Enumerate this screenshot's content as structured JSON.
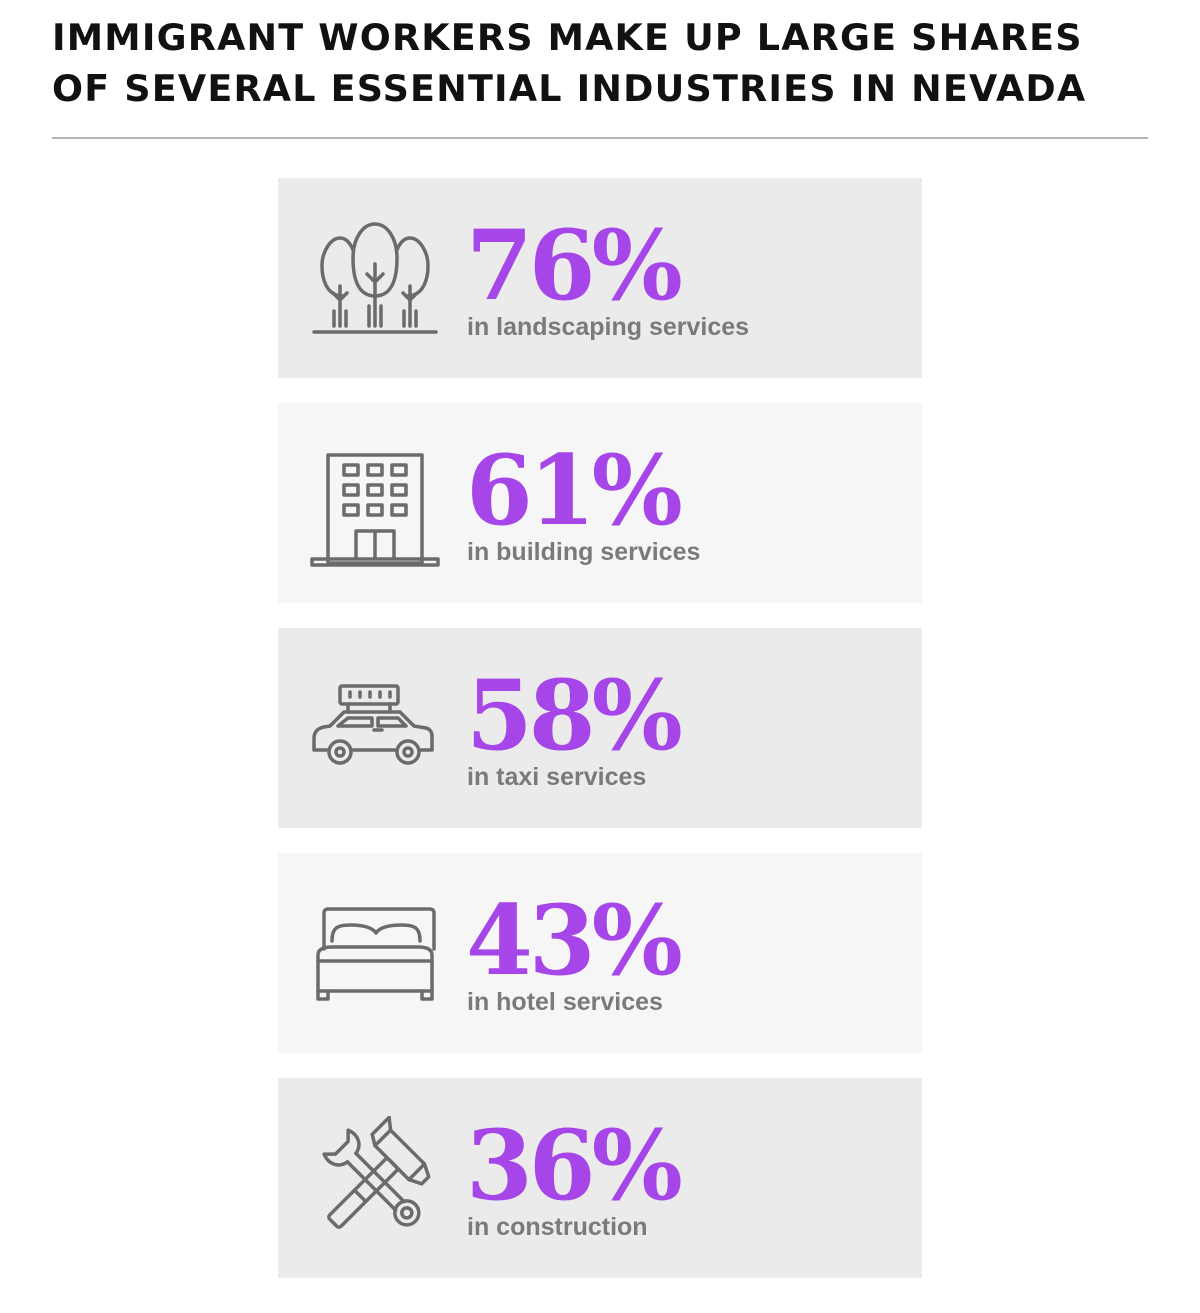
{
  "title": "IMMIGRANT WORKERS MAKE UP LARGE SHARES OF SEVERAL ESSENTIAL INDUSTRIES IN NEVADA",
  "colors": {
    "accent": "#a746e8",
    "label": "#7a7a7a",
    "icon": "#6b6b6b",
    "card_dark": "#ebebeb",
    "card_light": "#f6f6f6"
  },
  "chart_data": {
    "type": "table",
    "title": "IMMIGRANT WORKERS MAKE UP LARGE SHARES OF SEVERAL ESSENTIAL INDUSTRIES IN NEVADA",
    "unit": "%",
    "rows": [
      {
        "value_text": "76%",
        "value": 76,
        "label": "in landscaping services",
        "icon": "trees-icon"
      },
      {
        "value_text": "61%",
        "value": 61,
        "label": "in building services",
        "icon": "building-icon"
      },
      {
        "value_text": "58%",
        "value": 58,
        "label": "in taxi services",
        "icon": "taxi-icon"
      },
      {
        "value_text": "43%",
        "value": 43,
        "label": "in hotel services",
        "icon": "bed-icon"
      },
      {
        "value_text": "36%",
        "value": 36,
        "label": "in construction",
        "icon": "hammer-wrench-icon"
      }
    ]
  }
}
